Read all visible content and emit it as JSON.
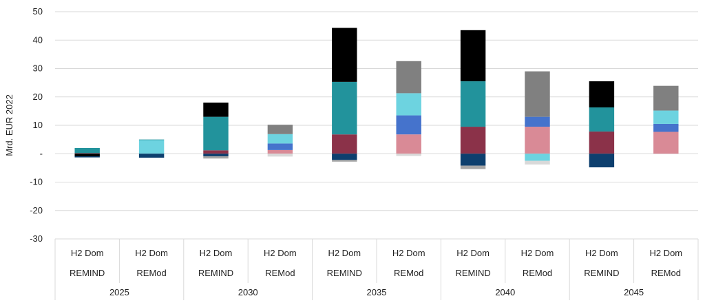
{
  "chart_data": {
    "type": "bar",
    "stacked": true,
    "ylabel": "Mrd. EUR 2022",
    "ylim": [
      -30,
      50
    ],
    "yticks": [
      {
        "value": 50,
        "label": "50"
      },
      {
        "value": 40,
        "label": "40"
      },
      {
        "value": 30,
        "label": "30"
      },
      {
        "value": 20,
        "label": "20"
      },
      {
        "value": 10,
        "label": "10"
      },
      {
        "value": 0,
        "label": "-"
      },
      {
        "value": -10,
        "label": "-10"
      },
      {
        "value": -20,
        "label": "-20"
      },
      {
        "value": -30,
        "label": "-30"
      }
    ],
    "grid": true,
    "legend": "none",
    "years": [
      "2025",
      "2030",
      "2035",
      "2040",
      "2045"
    ],
    "categories": [
      {
        "line1": "H2 Dom",
        "line2": "REMIND",
        "year_index": 0
      },
      {
        "line1": "H2 Dom",
        "line2": "REMod",
        "year_index": 0
      },
      {
        "line1": "H2 Dom",
        "line2": "REMIND",
        "year_index": 1
      },
      {
        "line1": "H2 Dom",
        "line2": "REMod",
        "year_index": 1
      },
      {
        "line1": "H2 Dom",
        "line2": "REMIND",
        "year_index": 2
      },
      {
        "line1": "H2 Dom",
        "line2": "REMod",
        "year_index": 2
      },
      {
        "line1": "H2 Dom",
        "line2": "REMIND",
        "year_index": 3
      },
      {
        "line1": "H2 Dom",
        "line2": "REMod",
        "year_index": 3
      },
      {
        "line1": "H2 Dom",
        "line2": "REMIND",
        "year_index": 4
      },
      {
        "line1": "H2 Dom",
        "line2": "REMod",
        "year_index": 4
      }
    ],
    "series": [
      {
        "color": "#8b3249",
        "values": [
          0.2,
          0,
          1.2,
          0,
          6.8,
          0,
          9.5,
          0,
          7.8,
          0
        ]
      },
      {
        "color": "#d98a96",
        "values": [
          0,
          0,
          0,
          1.3,
          0,
          6.8,
          0,
          9.5,
          0,
          7.7
        ]
      },
      {
        "color": "#4573cc",
        "values": [
          0,
          0,
          0,
          2.3,
          0,
          6.7,
          0,
          3.5,
          0,
          2.8
        ]
      },
      {
        "color": "#6dd3e0",
        "values": [
          0,
          4.8,
          0,
          3.3,
          0,
          7.8,
          0,
          -2.5,
          0,
          4.7
        ]
      },
      {
        "color": "#22939c",
        "values": [
          1.8,
          0.2,
          11.8,
          0,
          18.5,
          0,
          16.0,
          0,
          8.5,
          0
        ]
      },
      {
        "color": "#808080",
        "values": [
          0,
          0,
          0,
          3.3,
          0,
          11.3,
          0,
          16.0,
          0,
          8.7
        ]
      },
      {
        "color": "#000000",
        "values": [
          -0.9,
          0,
          5.0,
          0,
          19.0,
          0,
          18.0,
          0,
          9.2,
          0
        ]
      },
      {
        "color": "#0d3f6e",
        "values": [
          -0.4,
          -1.4,
          -0.9,
          0,
          -2.2,
          0,
          -4.2,
          0,
          -4.8,
          0
        ]
      },
      {
        "color": "#a6a6a6",
        "values": [
          0,
          0,
          -0.8,
          0,
          -0.6,
          0,
          -1.2,
          0,
          0,
          0
        ]
      },
      {
        "color": "#d9d9d9",
        "values": [
          0,
          0,
          0,
          -1.0,
          0,
          -0.8,
          0,
          -1.3,
          0,
          0
        ]
      }
    ]
  }
}
